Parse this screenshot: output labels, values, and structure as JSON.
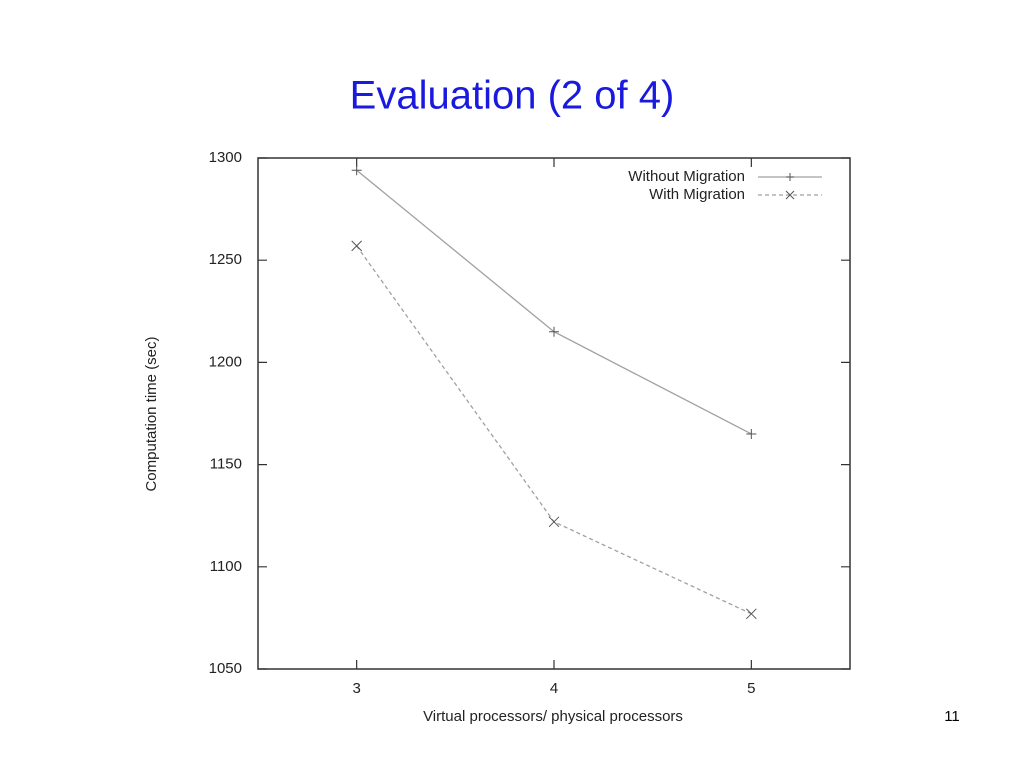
{
  "slide": {
    "title": "Evaluation (2 of 4)",
    "page_number": "11"
  },
  "chart_data": {
    "type": "line",
    "x_label": "Virtual processors/ physical processors",
    "y_label": "Computation time (sec)",
    "x": [
      3,
      4,
      5
    ],
    "series": [
      {
        "name": "Without Migration",
        "color": "#a0a0a0",
        "linestyle": "solid",
        "marker": "+",
        "values": [
          1294,
          1215,
          1165
        ]
      },
      {
        "name": "With Migration",
        "color": "#a0a0a0",
        "linestyle": "dashed",
        "marker": "x",
        "values": [
          1257,
          1122,
          1077
        ]
      }
    ],
    "xlim": [
      2.5,
      5.5
    ],
    "xticks": [
      3,
      4,
      5
    ],
    "ylim": [
      1050,
      1300
    ],
    "yticks": [
      1050,
      1100,
      1150,
      1200,
      1250,
      1300
    ],
    "legend": "upper right",
    "grid": false
  }
}
